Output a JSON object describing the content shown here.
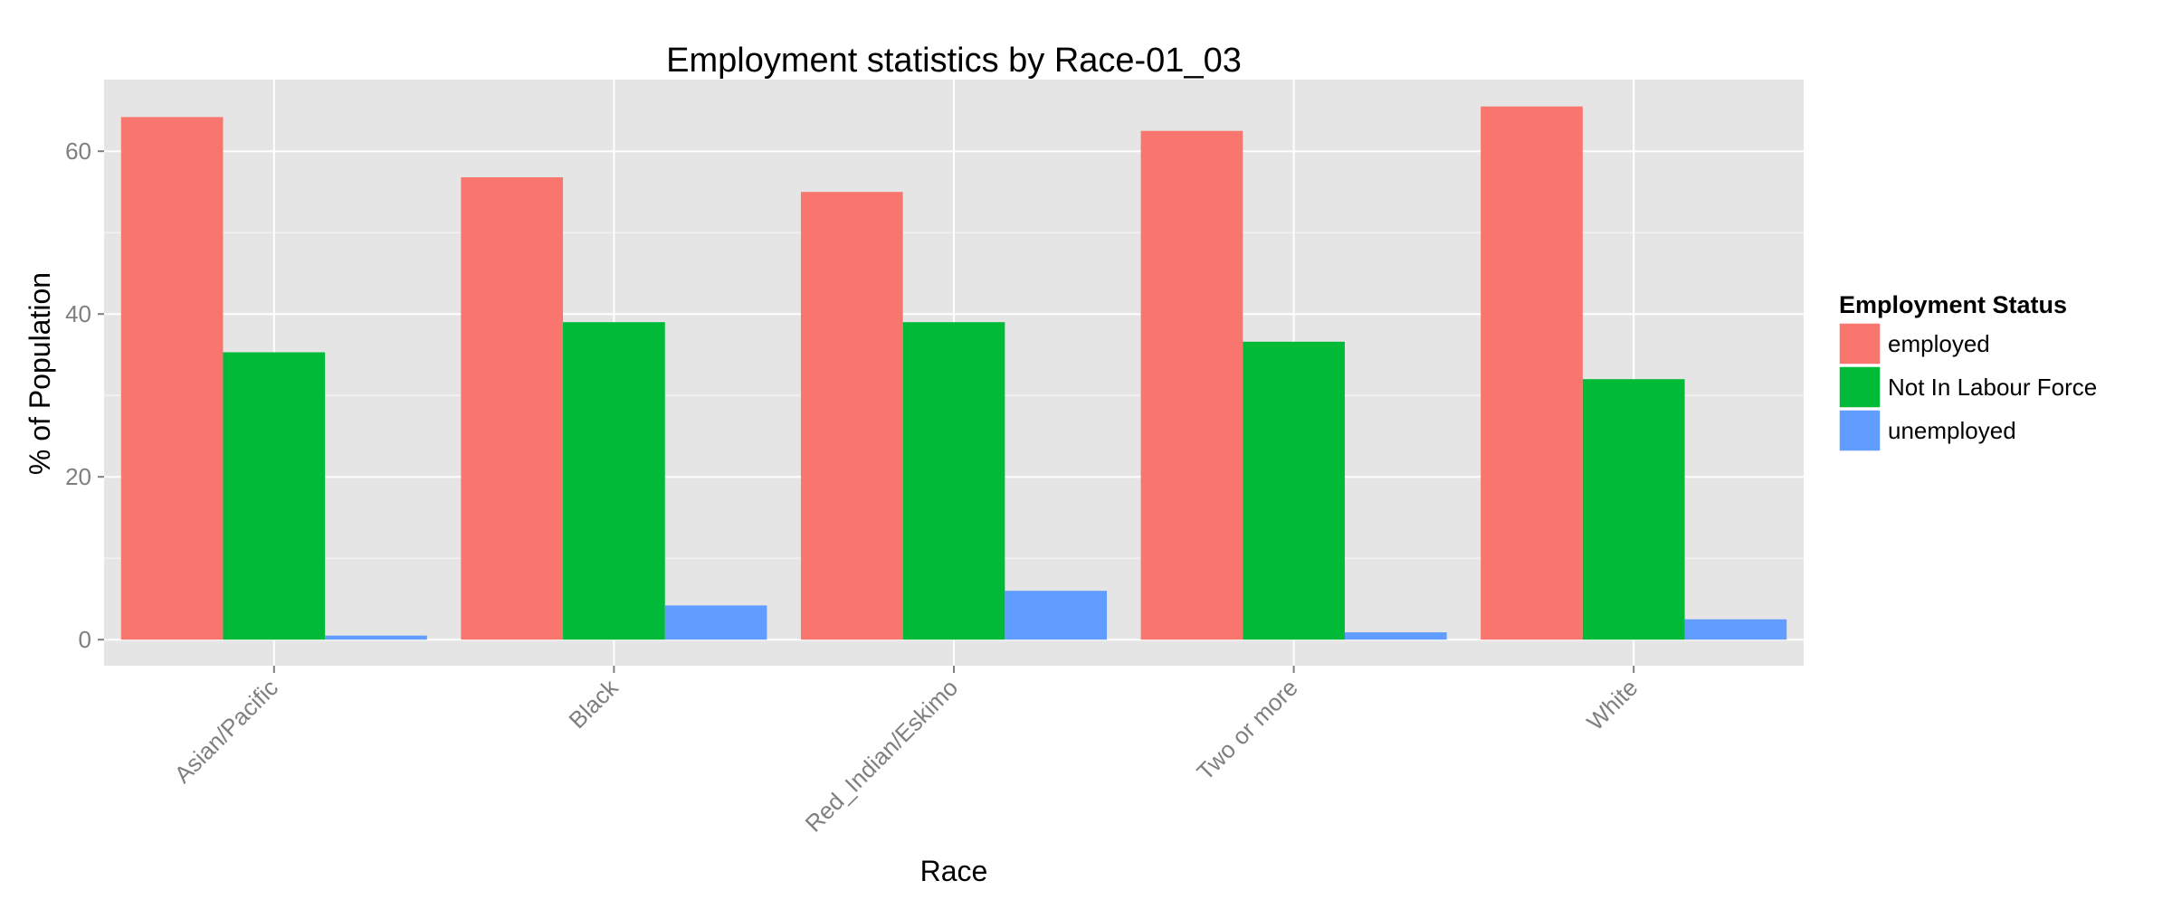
{
  "chart_data": {
    "type": "bar",
    "title": "Employment statistics by Race-01_03",
    "xlabel": "Race",
    "ylabel": "% of Population",
    "categories": [
      "Asian/Pacific",
      "Black",
      "Red_Indian/Eskimo",
      "Two or more",
      "White"
    ],
    "series": [
      {
        "name": "employed",
        "color": "#F8766D",
        "values": [
          64.2,
          56.8,
          55.0,
          62.5,
          65.5
        ]
      },
      {
        "name": "Not In Labour Force",
        "color": "#00BA38",
        "values": [
          35.3,
          39.0,
          39.0,
          36.6,
          32.0
        ]
      },
      {
        "name": "unemployed",
        "color": "#619CFF",
        "values": [
          0.5,
          4.2,
          6.0,
          0.9,
          2.5
        ]
      }
    ],
    "ylim": [
      -3.2,
      68.8
    ],
    "yticks": [
      0,
      20,
      40,
      60
    ],
    "grid": true,
    "panel_background": "#E5E5E5",
    "gridline_color": "#FFFFFF",
    "tick_label_color": "#7F7F7F",
    "legend": {
      "title": "Employment Status",
      "position": "right"
    }
  }
}
